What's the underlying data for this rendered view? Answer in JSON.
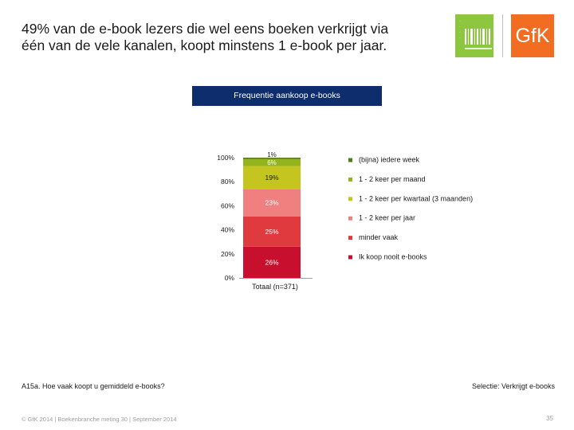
{
  "header": {
    "title_line1": "49% van de e-book lezers die wel eens boeken verkrijgt via",
    "title_line2": "één van de vele kanalen, koopt minstens 1 e-book per jaar."
  },
  "logos": {
    "left_logo_icon": "barcode-logo-icon",
    "gfk_label": "GfK",
    "left_color": "#8dc63f",
    "gfk_color": "#f26c21"
  },
  "banner": {
    "label": "Frequentie aankoop e-books"
  },
  "chart_data": {
    "type": "bar",
    "stacked": true,
    "categories": [
      "Totaal (n=371)"
    ],
    "ylim": [
      0,
      100
    ],
    "ytick_labels": [
      "0%",
      "20%",
      "40%",
      "60%",
      "80%",
      "100%"
    ],
    "yticks": [
      0,
      20,
      40,
      60,
      80,
      100
    ],
    "legend_placement": "right",
    "series": [
      {
        "name": "Ik koop nooit e-books",
        "values": [
          26
        ],
        "label": "26%",
        "color": "#c8102e"
      },
      {
        "name": "minder vaak",
        "values": [
          25
        ],
        "label": "25%",
        "color": "#e03a3e"
      },
      {
        "name": "1 - 2 keer per jaar",
        "values": [
          23
        ],
        "label": "23%",
        "color": "#f08080"
      },
      {
        "name": "1 - 2 keer per kwartaal (3 maanden)",
        "values": [
          19
        ],
        "label": "19%",
        "color": "#c5c51f"
      },
      {
        "name": "1 - 2 keer per maand",
        "values": [
          6
        ],
        "label": "6%",
        "color": "#93b41f"
      },
      {
        "name": "(bijna) iedere week",
        "values": [
          1
        ],
        "label": "1%",
        "color": "#4e7d1e"
      }
    ]
  },
  "footer": {
    "question": "A15a. Hoe vaak koopt u gemiddeld e-books?",
    "selection": "Selectie: Verkrijgt e-books",
    "copyright": "© GfK 2014 | Boekenbranche meting 30 | September 2014",
    "page_number": "35"
  }
}
